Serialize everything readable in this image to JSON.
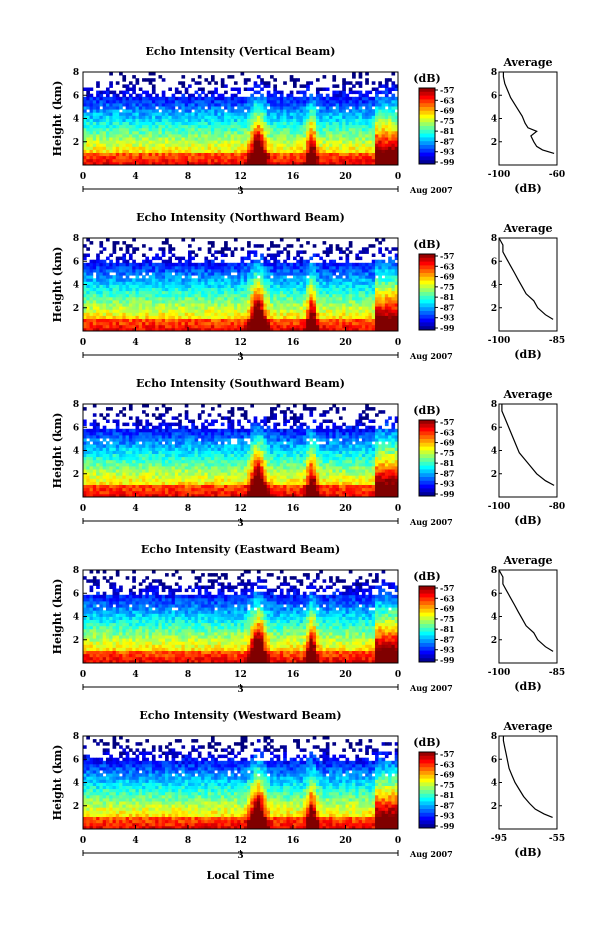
{
  "chart_data": [
    {
      "type": "heatmap",
      "title": "Echo Intensity (Vertical Beam)",
      "ylabel": "Height (km)",
      "xlim": [
        0,
        24
      ],
      "ylim": [
        0,
        8
      ],
      "xticks": [
        "0",
        "4",
        "8",
        "12",
        "16",
        "20",
        "0"
      ],
      "yticks": [
        "2",
        "4",
        "6",
        "8"
      ],
      "date_tick": "3",
      "date_label": "Aug 2007",
      "colorbar": {
        "unit": "(dB)",
        "labels": [
          "-57",
          "-63",
          "-69",
          "-75",
          "-81",
          "-87",
          "-93",
          "-99"
        ],
        "range": [
          -99,
          -57
        ]
      },
      "avg": {
        "title": "Average",
        "xlabel": "(dB)",
        "xlim": [
          -100,
          -60
        ],
        "xticks": [
          "-100",
          "-60"
        ],
        "yticks": [
          "2",
          "4",
          "6",
          "8"
        ],
        "profile": [
          [
            1.0,
            -62
          ],
          [
            1.3,
            -70
          ],
          [
            1.6,
            -74
          ],
          [
            2.0,
            -76
          ],
          [
            2.5,
            -78
          ],
          [
            2.9,
            -74
          ],
          [
            3.2,
            -80
          ],
          [
            3.6,
            -82
          ],
          [
            4.2,
            -84
          ],
          [
            5.0,
            -88
          ],
          [
            5.8,
            -92
          ],
          [
            6.4,
            -94
          ],
          [
            7.0,
            -96
          ],
          [
            7.6,
            -97
          ],
          [
            8.0,
            -97
          ]
        ]
      }
    },
    {
      "type": "heatmap",
      "title": "Echo Intensity (Northward Beam)",
      "ylabel": "Height (km)",
      "xlim": [
        0,
        24
      ],
      "ylim": [
        0,
        8
      ],
      "xticks": [
        "0",
        "4",
        "8",
        "12",
        "16",
        "20",
        "0"
      ],
      "yticks": [
        "2",
        "4",
        "6",
        "8"
      ],
      "date_tick": "3",
      "date_label": "Aug 2007",
      "colorbar": {
        "unit": "(dB)",
        "labels": [
          "-57",
          "-63",
          "-69",
          "-75",
          "-81",
          "-87",
          "-93",
          "-99"
        ],
        "range": [
          -99,
          -57
        ]
      },
      "avg": {
        "title": "Average",
        "xlabel": "(dB)",
        "xlim": [
          -100,
          -85
        ],
        "xticks": [
          "-100",
          "-85"
        ],
        "yticks": [
          "2",
          "4",
          "6",
          "8"
        ],
        "profile": [
          [
            1.0,
            -86
          ],
          [
            1.4,
            -88
          ],
          [
            2.0,
            -90
          ],
          [
            2.6,
            -91
          ],
          [
            3.2,
            -93
          ],
          [
            3.8,
            -94
          ],
          [
            4.4,
            -95
          ],
          [
            5.0,
            -96
          ],
          [
            5.6,
            -97
          ],
          [
            6.2,
            -98
          ],
          [
            6.8,
            -99
          ],
          [
            7.4,
            -99
          ],
          [
            8.0,
            -100
          ]
        ]
      }
    },
    {
      "type": "heatmap",
      "title": "Echo Intensity (Southward Beam)",
      "ylabel": "Height (km)",
      "xlim": [
        0,
        24
      ],
      "ylim": [
        0,
        8
      ],
      "xticks": [
        "0",
        "4",
        "8",
        "12",
        "16",
        "20",
        "0"
      ],
      "yticks": [
        "2",
        "4",
        "6",
        "8"
      ],
      "date_tick": "3",
      "date_label": "Aug 2007",
      "colorbar": {
        "unit": "(dB)",
        "labels": [
          "-57",
          "-63",
          "-69",
          "-75",
          "-81",
          "-87",
          "-93",
          "-99"
        ],
        "range": [
          -99,
          -57
        ]
      },
      "avg": {
        "title": "Average",
        "xlabel": "(dB)",
        "xlim": [
          -100,
          -80
        ],
        "xticks": [
          "-100",
          "-80"
        ],
        "yticks": [
          "2",
          "4",
          "6",
          "8"
        ],
        "profile": [
          [
            1.0,
            -81
          ],
          [
            1.4,
            -84
          ],
          [
            2.0,
            -87
          ],
          [
            2.6,
            -89
          ],
          [
            3.2,
            -91
          ],
          [
            3.8,
            -93
          ],
          [
            4.4,
            -94
          ],
          [
            5.0,
            -95
          ],
          [
            5.6,
            -96
          ],
          [
            6.2,
            -97
          ],
          [
            6.8,
            -98
          ],
          [
            7.4,
            -99
          ],
          [
            8.0,
            -99
          ]
        ]
      }
    },
    {
      "type": "heatmap",
      "title": "Echo Intensity (Eastward Beam)",
      "ylabel": "Height (km)",
      "xlim": [
        0,
        24
      ],
      "ylim": [
        0,
        8
      ],
      "xticks": [
        "0",
        "4",
        "8",
        "12",
        "16",
        "20",
        "0"
      ],
      "yticks": [
        "2",
        "4",
        "6",
        "8"
      ],
      "date_tick": "3",
      "date_label": "Aug 2007",
      "colorbar": {
        "unit": "(dB)",
        "labels": [
          "-57",
          "-63",
          "-69",
          "-75",
          "-81",
          "-87",
          "-93",
          "-99"
        ],
        "range": [
          -99,
          -57
        ]
      },
      "avg": {
        "title": "Average",
        "xlabel": "(dB)",
        "xlim": [
          -100,
          -85
        ],
        "xticks": [
          "-100",
          "-85"
        ],
        "yticks": [
          "2",
          "4",
          "6",
          "8"
        ],
        "profile": [
          [
            1.0,
            -86
          ],
          [
            1.4,
            -88
          ],
          [
            2.0,
            -90
          ],
          [
            2.6,
            -91
          ],
          [
            3.2,
            -93
          ],
          [
            3.8,
            -94
          ],
          [
            4.4,
            -95
          ],
          [
            5.0,
            -96
          ],
          [
            5.6,
            -97
          ],
          [
            6.2,
            -98
          ],
          [
            6.8,
            -99
          ],
          [
            7.4,
            -99
          ],
          [
            8.0,
            -100
          ]
        ]
      }
    },
    {
      "type": "heatmap",
      "title": "Echo Intensity (Westward Beam)",
      "ylabel": "Height (km)",
      "xlim": [
        0,
        24
      ],
      "ylim": [
        0,
        8
      ],
      "xticks": [
        "0",
        "4",
        "8",
        "12",
        "16",
        "20",
        "0"
      ],
      "yticks": [
        "2",
        "4",
        "6",
        "8"
      ],
      "date_tick": "3",
      "date_label": "Aug 2007",
      "colorbar": {
        "unit": "(dB)",
        "labels": [
          "-57",
          "-63",
          "-69",
          "-75",
          "-81",
          "-87",
          "-93",
          "-99"
        ],
        "range": [
          -99,
          -57
        ]
      },
      "avg": {
        "title": "Average",
        "xlabel": "(dB)",
        "xlim": [
          -95,
          -55
        ],
        "xticks": [
          "-95",
          "-55"
        ],
        "yticks": [
          "2",
          "4",
          "6",
          "8"
        ],
        "profile": [
          [
            1.0,
            -58
          ],
          [
            1.3,
            -64
          ],
          [
            1.7,
            -70
          ],
          [
            2.2,
            -74
          ],
          [
            2.8,
            -78
          ],
          [
            3.4,
            -81
          ],
          [
            4.0,
            -84
          ],
          [
            4.6,
            -86
          ],
          [
            5.2,
            -88
          ],
          [
            5.8,
            -89
          ],
          [
            6.4,
            -90
          ],
          [
            7.0,
            -91
          ],
          [
            7.6,
            -92
          ],
          [
            8.0,
            -92
          ]
        ]
      }
    }
  ],
  "bottom_xlabel": "Local Time"
}
